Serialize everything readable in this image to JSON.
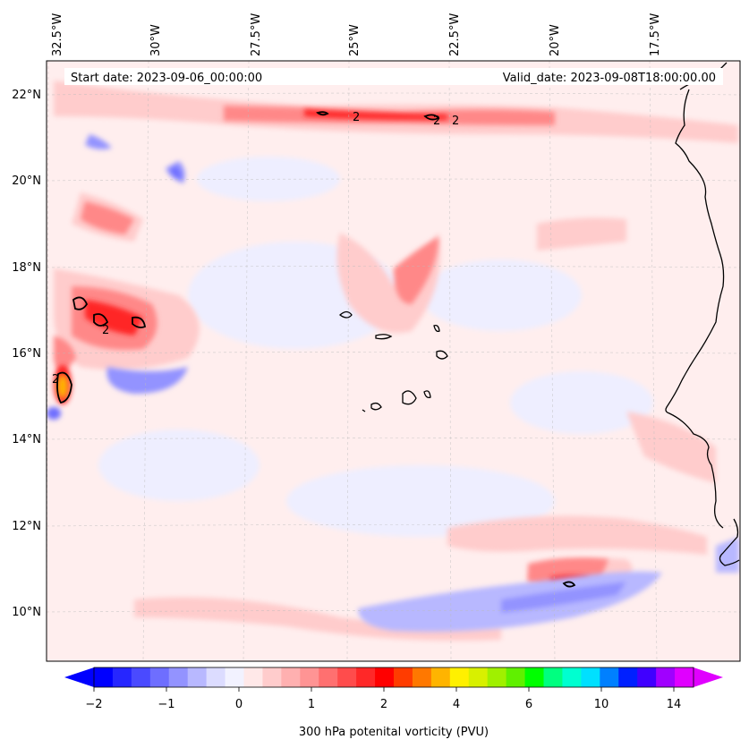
{
  "header": {
    "start_date": "Start date: 2023-09-06_00:00:00",
    "valid_date": "Valid_date: 2023-09-08T18:00:00.00"
  },
  "axes": {
    "longitude_labels": [
      "32.5°W",
      "30°W",
      "27.5°W",
      "25°W",
      "22.5°W",
      "20°W",
      "17.5°W"
    ],
    "latitude_labels": [
      "22°N",
      "20°N",
      "18°N",
      "16°N",
      "14°N",
      "12°N",
      "10°N"
    ]
  },
  "colorbar": {
    "label": "300 hPa potenital vorticity (PVU)",
    "tick_labels": [
      "−2",
      "−1",
      "0",
      "1",
      "2",
      "4",
      "6",
      "10",
      "14"
    ],
    "colors": [
      "#0000ff",
      "#2626ff",
      "#4a4aff",
      "#6e6eff",
      "#9393ff",
      "#b8b8ff",
      "#dcdcff",
      "#f2f2ff",
      "#ffe8e8",
      "#ffcccc",
      "#ffb0b0",
      "#ff9494",
      "#ff7070",
      "#ff4c4c",
      "#ff2828",
      "#ff0000",
      "#ff3c00",
      "#ff7800",
      "#ffb400",
      "#fff000",
      "#d8f000",
      "#a0f000",
      "#60f000",
      "#00ff00",
      "#00ff80",
      "#00ffd0",
      "#00e0ff",
      "#0080ff",
      "#0020ff",
      "#4000ff",
      "#a000ff",
      "#e000ff"
    ]
  },
  "map": {
    "background": "#ffeeee",
    "contour_labels": [
      "2",
      "2",
      "2",
      "2",
      "2"
    ]
  }
}
